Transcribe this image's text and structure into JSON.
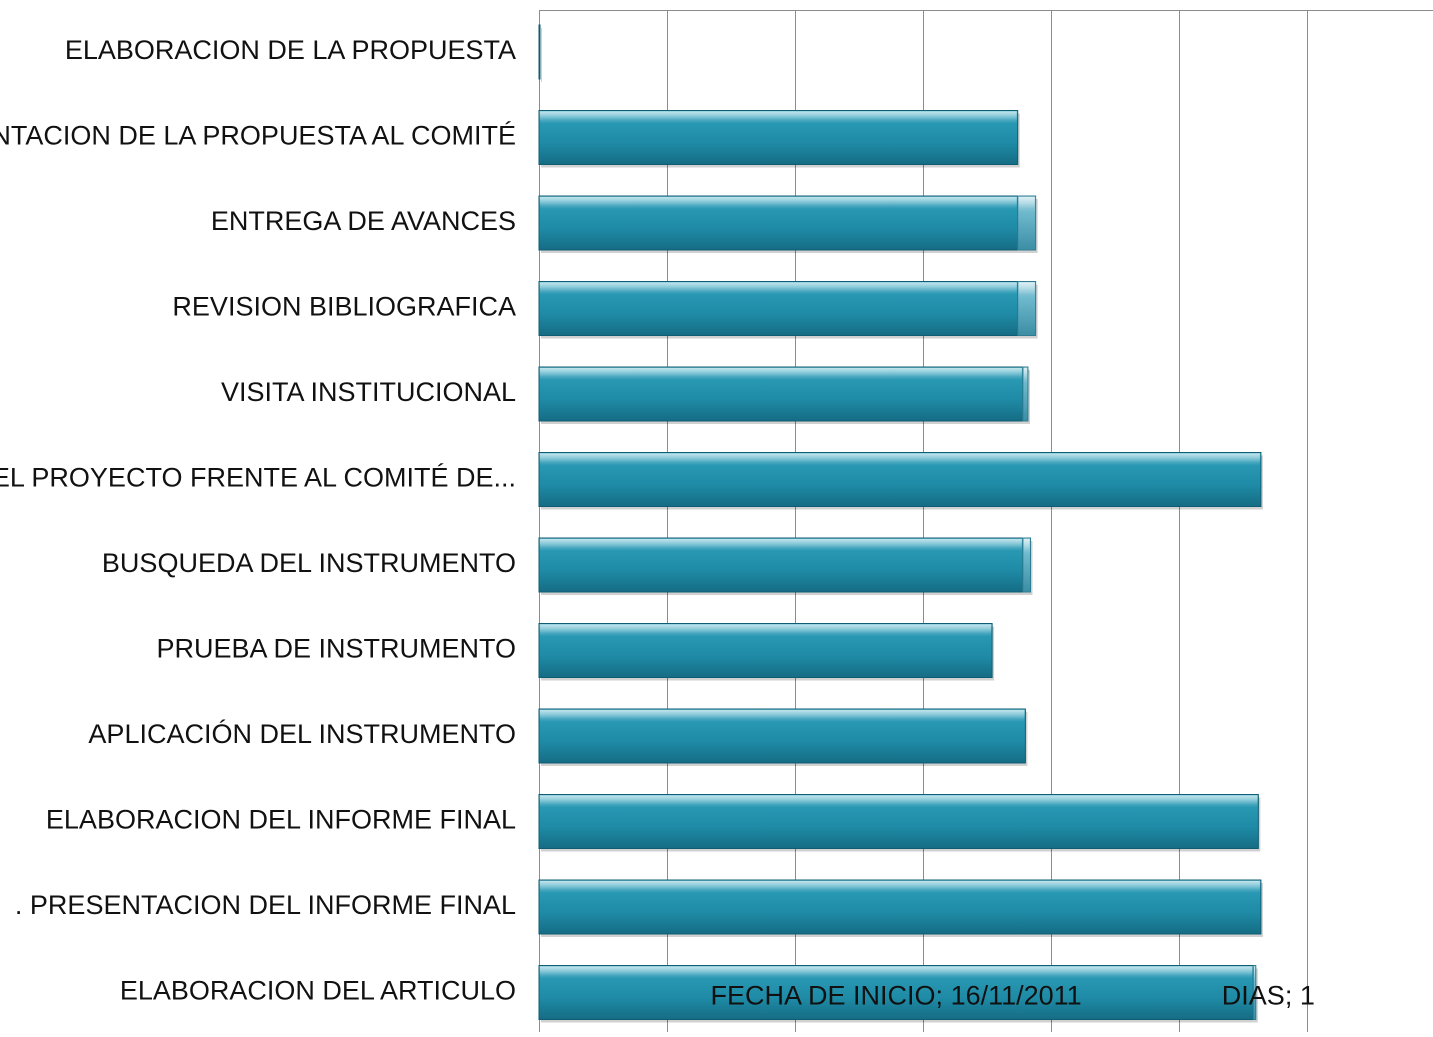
{
  "chart_data": {
    "type": "bar",
    "orientation": "horizontal",
    "stacked": true,
    "categories": [
      "ELABORACION DE LA PROPUESTA",
      "PRESENTACION DE LA PROPUESTA AL COMITÉ",
      "ENTREGA DE AVANCES",
      "REVISION BIBLIOGRAFICA",
      "VISITA INSTITUCIONAL",
      "PRESENTACION DEL PROYECTO FRENTE AL COMITÉ DE...",
      "BUSQUEDA DEL INSTRUMENTO",
      "PRUEBA DE INSTRUMENTO",
      "APLICACIÓN DEL INSTRUMENTO",
      "ELABORACION DEL INFORME FINAL",
      ". PRESENTACION DEL INFORME FINAL",
      "ELABORACION DEL ARTICULO"
    ],
    "series": [
      {
        "name": "FECHA DE INICIO",
        "color": "#1f8fab",
        "values": [
          0.2,
          187,
          187,
          187,
          189,
          282,
          189,
          177,
          190,
          281,
          282,
          279
        ]
      },
      {
        "name": "DIAS",
        "color": "#4fa8c0",
        "values": [
          0,
          0,
          7,
          7,
          2,
          0,
          3,
          0,
          0,
          0,
          0,
          1
        ]
      }
    ],
    "data_labels": [
      {
        "category_index": 11,
        "series": "FECHA DE INICIO",
        "text": "FECHA DE INICIO; 16/11/2011"
      },
      {
        "category_index": 11,
        "series": "DIAS",
        "text": "DIAS; 1"
      }
    ],
    "xlim": [
      0,
      350
    ],
    "x_grid_step": 50,
    "grid": true,
    "legend": "none",
    "title": "",
    "xlabel": "",
    "ylabel": ""
  }
}
